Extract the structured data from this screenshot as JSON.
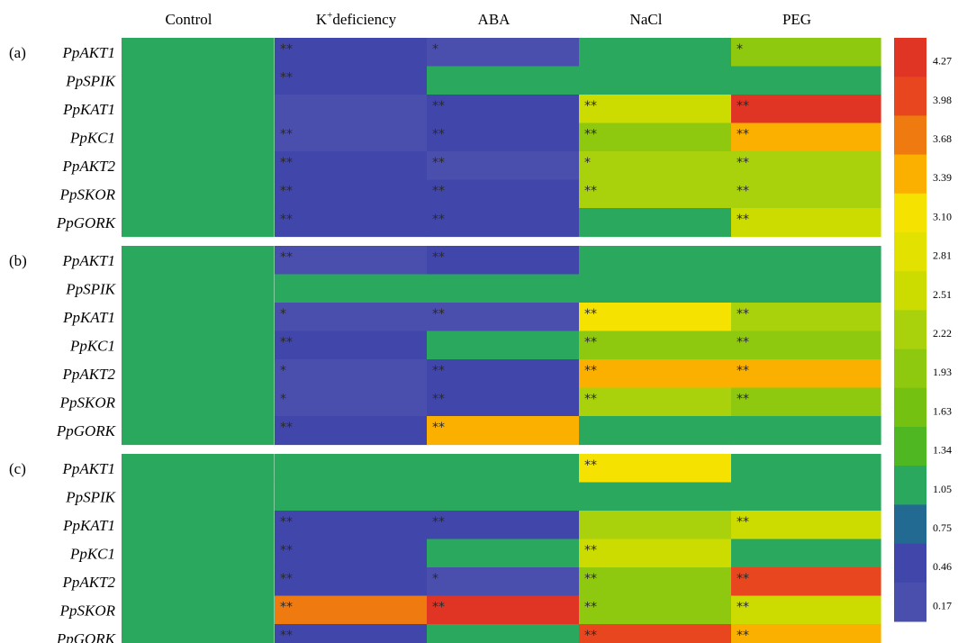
{
  "chart_data": {
    "type": "heatmap",
    "columns": [
      "Control",
      "deficiency",
      "ABA",
      "NaCl",
      "PEG"
    ],
    "k_deficiency_label": {
      "base": "K",
      "sup": "+",
      "rest": "deficiency"
    },
    "rows": [
      "PpAKT1",
      "PpSPIK",
      "PpKAT1",
      "PpKC1",
      "PpAKT2",
      "PpSKOR",
      "PpGORK"
    ],
    "panels": [
      {
        "label": "(a)",
        "values": [
          [
            1,
            0.4,
            0.3,
            1,
            1.9
          ],
          [
            1,
            0.4,
            1.05,
            1,
            1.05
          ],
          [
            1,
            0.3,
            0.4,
            2.6,
            4.3
          ],
          [
            1,
            0.3,
            0.4,
            1.8,
            3.4
          ],
          [
            1,
            0.4,
            0.3,
            2.2,
            2.2
          ],
          [
            1,
            0.4,
            0.4,
            2.2,
            2.2
          ],
          [
            1,
            0.4,
            0.4,
            1,
            2.5
          ]
        ],
        "stars": [
          [
            "",
            "**",
            "*",
            "",
            "*"
          ],
          [
            "",
            "**",
            "",
            "",
            ""
          ],
          [
            "",
            "",
            "**",
            "**",
            "**"
          ],
          [
            "",
            "**",
            "**",
            "**",
            "**"
          ],
          [
            "",
            "**",
            "**",
            "*",
            "**"
          ],
          [
            "",
            "**",
            "**",
            "**",
            "**"
          ],
          [
            "",
            "**",
            "**",
            "",
            "**"
          ]
        ]
      },
      {
        "label": "(b)",
        "values": [
          [
            1,
            0.3,
            0.4,
            1.05,
            1
          ],
          [
            1,
            1,
            1.05,
            1,
            1.05
          ],
          [
            1,
            0.3,
            0.3,
            3.0,
            2.3
          ],
          [
            1,
            0.4,
            1,
            1.9,
            1.9
          ],
          [
            1,
            0.3,
            0.4,
            3.4,
            3.4
          ],
          [
            1,
            0.3,
            0.4,
            2.2,
            1.9
          ],
          [
            1,
            0.4,
            3.4,
            1.05,
            1
          ]
        ],
        "stars": [
          [
            "",
            "**",
            "**",
            "",
            ""
          ],
          [
            "",
            "",
            "",
            "",
            ""
          ],
          [
            "",
            "*",
            "**",
            "**",
            "**"
          ],
          [
            "",
            "**",
            "",
            "**",
            "**"
          ],
          [
            "",
            "*",
            "**",
            "**",
            "**"
          ],
          [
            "",
            "*",
            "**",
            "**",
            "**"
          ],
          [
            "",
            "**",
            "**",
            "",
            ""
          ]
        ]
      },
      {
        "label": "(c)",
        "values": [
          [
            1,
            1,
            1,
            3.1,
            1
          ],
          [
            1,
            1,
            1.05,
            1,
            1
          ],
          [
            1,
            0.4,
            0.4,
            2.3,
            2.6
          ],
          [
            1,
            0.4,
            1,
            2.6,
            1
          ],
          [
            1,
            0.4,
            0.3,
            1.9,
            4.1
          ],
          [
            1,
            3.7,
            4.3,
            1.9,
            2.6
          ],
          [
            1,
            0.4,
            1,
            4.1,
            3.4
          ]
        ],
        "stars": [
          [
            "",
            "",
            "",
            "**",
            ""
          ],
          [
            "",
            "",
            "",
            "",
            ""
          ],
          [
            "",
            "**",
            "**",
            "",
            "**"
          ],
          [
            "",
            "**",
            "",
            "**",
            ""
          ],
          [
            "",
            "**",
            "*",
            "**",
            "**"
          ],
          [
            "",
            "**",
            "**",
            "**",
            "**"
          ],
          [
            "",
            "**",
            "",
            "**",
            "**"
          ]
        ]
      }
    ],
    "colorbar": {
      "ticks": [
        "4.27",
        "3.98",
        "3.68",
        "3.39",
        "3.10",
        "2.81",
        "2.51",
        "2.22",
        "1.93",
        "1.63",
        "1.34",
        "1.05",
        "0.75",
        "0.46",
        "0.17"
      ],
      "colors": [
        "#e03424",
        "#e8461e",
        "#ef7a0f",
        "#fbb000",
        "#f6e200",
        "#e2e100",
        "#ccdb00",
        "#a9d20c",
        "#8ec80f",
        "#74c111",
        "#4eb722",
        "#29a85e",
        "#236a92",
        "#4146ab",
        "#4a4fae"
      ]
    }
  }
}
